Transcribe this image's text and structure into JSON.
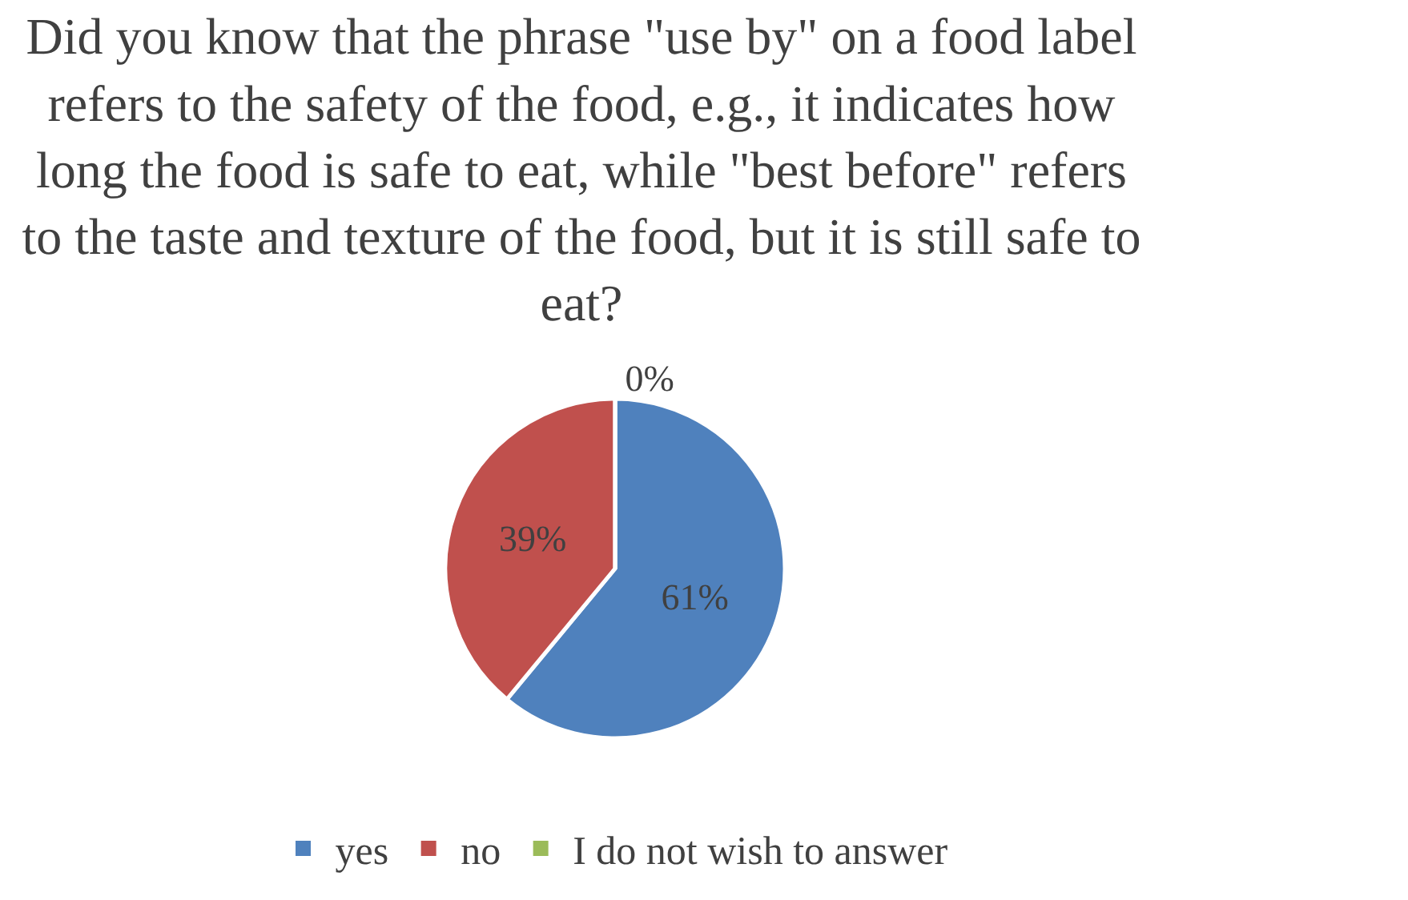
{
  "chart_data": {
    "type": "pie",
    "title": "Did you know that the phrase \"use by\" on a food label\nrefers to the safety of the food, e.g., it indicates how\nlong the food is safe to eat, while \"best before\" refers\nto the taste and texture of the food, but it is still safe to\neat?",
    "categories": [
      "yes",
      "no",
      "I do not wish to answer"
    ],
    "values": [
      61,
      39,
      0
    ],
    "colors": [
      "#4f81bd",
      "#c0504d",
      "#9bbb59"
    ],
    "value_labels": [
      "61%",
      "39%",
      "0%"
    ],
    "legend": "bottom"
  }
}
